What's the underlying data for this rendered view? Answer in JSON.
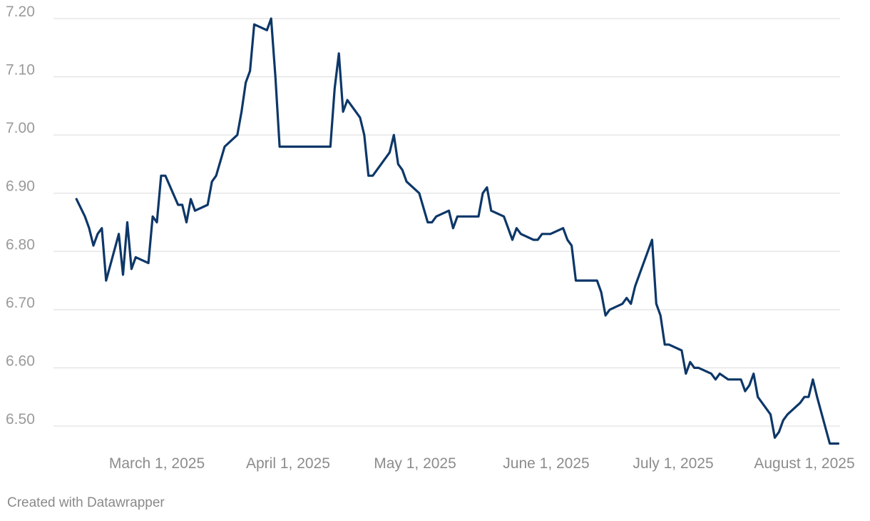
{
  "chart_data": {
    "type": "line",
    "title": "",
    "xlabel": "",
    "ylabel": "",
    "ylim": [
      6.46,
      7.21
    ],
    "y_ticks": [
      7.2,
      7.1,
      7.0,
      6.9,
      6.8,
      6.7,
      6.6,
      6.5
    ],
    "y_tick_labels": [
      "7.20",
      "7.10",
      "7.00",
      "6.90",
      "6.80",
      "6.70",
      "6.60",
      "6.50"
    ],
    "x_ticks": [
      "2025-03-01",
      "2025-04-01",
      "2025-05-01",
      "2025-06-01",
      "2025-07-01",
      "2025-08-01"
    ],
    "x_tick_labels": [
      "March 1, 2025",
      "April 1, 2025",
      "May 1, 2025",
      "June 1, 2025",
      "July 1, 2025",
      "August 1, 2025"
    ],
    "grid": true,
    "colors": {
      "line": "#0d3768",
      "grid": "#e2e2e2",
      "tick_text": "#9a9a9a"
    },
    "series": [
      {
        "points": [
          [
            "2025-02-10",
            6.89
          ],
          [
            "2025-02-12",
            6.86
          ],
          [
            "2025-02-13",
            6.84
          ],
          [
            "2025-02-14",
            6.81
          ],
          [
            "2025-02-15",
            6.83
          ],
          [
            "2025-02-16",
            6.84
          ],
          [
            "2025-02-17",
            6.75
          ],
          [
            "2025-02-20",
            6.83
          ],
          [
            "2025-02-21",
            6.76
          ],
          [
            "2025-02-22",
            6.85
          ],
          [
            "2025-02-23",
            6.77
          ],
          [
            "2025-02-24",
            6.79
          ],
          [
            "2025-02-27",
            6.78
          ],
          [
            "2025-02-28",
            6.86
          ],
          [
            "2025-03-01",
            6.85
          ],
          [
            "2025-03-02",
            6.93
          ],
          [
            "2025-03-03",
            6.93
          ],
          [
            "2025-03-06",
            6.88
          ],
          [
            "2025-03-07",
            6.88
          ],
          [
            "2025-03-08",
            6.85
          ],
          [
            "2025-03-09",
            6.89
          ],
          [
            "2025-03-10",
            6.87
          ],
          [
            "2025-03-13",
            6.88
          ],
          [
            "2025-03-14",
            6.92
          ],
          [
            "2025-03-15",
            6.93
          ],
          [
            "2025-03-17",
            6.98
          ],
          [
            "2025-03-20",
            7.0
          ],
          [
            "2025-03-21",
            7.04
          ],
          [
            "2025-03-22",
            7.09
          ],
          [
            "2025-03-23",
            7.11
          ],
          [
            "2025-03-24",
            7.19
          ],
          [
            "2025-03-27",
            7.18
          ],
          [
            "2025-03-28",
            7.2
          ],
          [
            "2025-03-29",
            7.1
          ],
          [
            "2025-03-30",
            6.98
          ],
          [
            "2025-04-11",
            6.98
          ],
          [
            "2025-04-12",
            7.08
          ],
          [
            "2025-04-13",
            7.14
          ],
          [
            "2025-04-14",
            7.04
          ],
          [
            "2025-04-15",
            7.06
          ],
          [
            "2025-04-18",
            7.03
          ],
          [
            "2025-04-19",
            7.0
          ],
          [
            "2025-04-20",
            6.93
          ],
          [
            "2025-04-21",
            6.93
          ],
          [
            "2025-04-25",
            6.97
          ],
          [
            "2025-04-26",
            7.0
          ],
          [
            "2025-04-27",
            6.95
          ],
          [
            "2025-04-28",
            6.94
          ],
          [
            "2025-04-29",
            6.92
          ],
          [
            "2025-05-02",
            6.9
          ],
          [
            "2025-05-04",
            6.85
          ],
          [
            "2025-05-05",
            6.85
          ],
          [
            "2025-05-06",
            6.86
          ],
          [
            "2025-05-09",
            6.87
          ],
          [
            "2025-05-10",
            6.84
          ],
          [
            "2025-05-11",
            6.86
          ],
          [
            "2025-05-16",
            6.86
          ],
          [
            "2025-05-17",
            6.9
          ],
          [
            "2025-05-18",
            6.91
          ],
          [
            "2025-05-19",
            6.87
          ],
          [
            "2025-05-22",
            6.86
          ],
          [
            "2025-05-23",
            6.84
          ],
          [
            "2025-05-24",
            6.82
          ],
          [
            "2025-05-25",
            6.84
          ],
          [
            "2025-05-26",
            6.83
          ],
          [
            "2025-05-29",
            6.82
          ],
          [
            "2025-05-30",
            6.82
          ],
          [
            "2025-05-31",
            6.83
          ],
          [
            "2025-06-02",
            6.83
          ],
          [
            "2025-06-05",
            6.84
          ],
          [
            "2025-06-06",
            6.82
          ],
          [
            "2025-06-07",
            6.81
          ],
          [
            "2025-06-08",
            6.75
          ],
          [
            "2025-06-13",
            6.75
          ],
          [
            "2025-06-14",
            6.73
          ],
          [
            "2025-06-15",
            6.69
          ],
          [
            "2025-06-16",
            6.7
          ],
          [
            "2025-06-19",
            6.71
          ],
          [
            "2025-06-20",
            6.72
          ],
          [
            "2025-06-21",
            6.71
          ],
          [
            "2025-06-22",
            6.74
          ],
          [
            "2025-06-23",
            6.76
          ],
          [
            "2025-06-26",
            6.82
          ],
          [
            "2025-06-27",
            6.71
          ],
          [
            "2025-06-28",
            6.69
          ],
          [
            "2025-06-29",
            6.64
          ],
          [
            "2025-06-30",
            6.64
          ],
          [
            "2025-07-03",
            6.63
          ],
          [
            "2025-07-04",
            6.59
          ],
          [
            "2025-07-05",
            6.61
          ],
          [
            "2025-07-06",
            6.6
          ],
          [
            "2025-07-07",
            6.6
          ],
          [
            "2025-07-10",
            6.59
          ],
          [
            "2025-07-11",
            6.58
          ],
          [
            "2025-07-12",
            6.59
          ],
          [
            "2025-07-14",
            6.58
          ],
          [
            "2025-07-17",
            6.58
          ],
          [
            "2025-07-18",
            6.56
          ],
          [
            "2025-07-19",
            6.57
          ],
          [
            "2025-07-20",
            6.59
          ],
          [
            "2025-07-21",
            6.55
          ],
          [
            "2025-07-24",
            6.52
          ],
          [
            "2025-07-25",
            6.48
          ],
          [
            "2025-07-26",
            6.49
          ],
          [
            "2025-07-27",
            6.51
          ],
          [
            "2025-07-28",
            6.52
          ],
          [
            "2025-07-31",
            6.54
          ],
          [
            "2025-08-01",
            6.55
          ],
          [
            "2025-08-02",
            6.55
          ],
          [
            "2025-08-03",
            6.58
          ],
          [
            "2025-08-04",
            6.55
          ],
          [
            "2025-08-07",
            6.47
          ],
          [
            "2025-08-08",
            6.47
          ],
          [
            "2025-08-09",
            6.47
          ]
        ]
      }
    ]
  },
  "footer": {
    "credit": "Created with Datawrapper"
  }
}
